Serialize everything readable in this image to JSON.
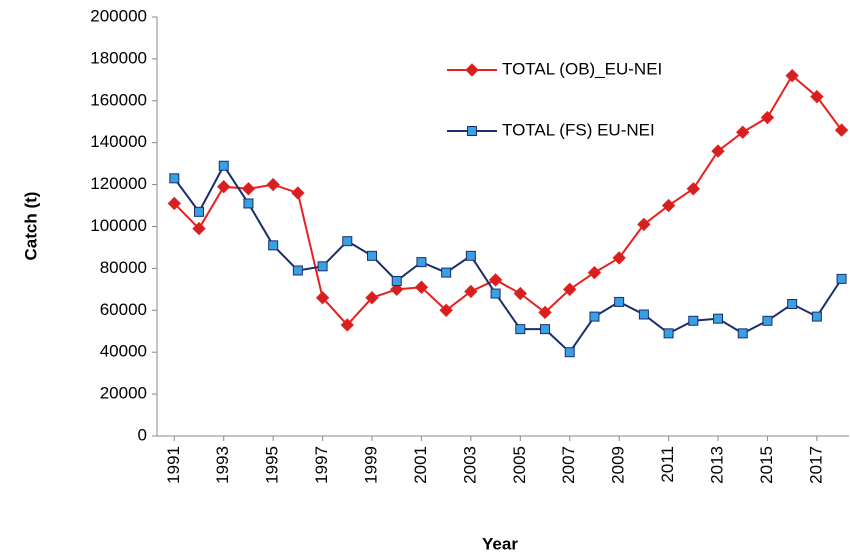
{
  "chart_data": {
    "type": "line",
    "x_label": "Year",
    "y_label": "Catch (t)",
    "x": [
      1991,
      1992,
      1993,
      1994,
      1995,
      1996,
      1997,
      1998,
      1999,
      2000,
      2001,
      2002,
      2003,
      2004,
      2005,
      2006,
      2007,
      2008,
      2009,
      2010,
      2011,
      2012,
      2013,
      2014,
      2015,
      2016,
      2017,
      2018
    ],
    "xlim": [
      1990.3,
      2018.3
    ],
    "xticks": [
      1991,
      1993,
      1995,
      1997,
      1999,
      2001,
      2003,
      2005,
      2007,
      2009,
      2011,
      2013,
      2015,
      2017
    ],
    "ylim": [
      0,
      200000
    ],
    "yticks": [
      0,
      20000,
      40000,
      60000,
      80000,
      100000,
      120000,
      140000,
      160000,
      180000,
      200000
    ],
    "grid": false,
    "legend": "upper right",
    "series": [
      {
        "name": "TOTAL (OB)_EU-NEI",
        "color": "#e8201e",
        "marker": "diamond",
        "marker_color": "#d42020",
        "values": [
          111000,
          99000,
          119000,
          118000,
          120000,
          116000,
          66000,
          53000,
          66000,
          70000,
          71000,
          60000,
          69000,
          74500,
          68000,
          59000,
          70000,
          78000,
          85000,
          101000,
          110000,
          118000,
          136000,
          145000,
          152000,
          172000,
          162000,
          146000
        ]
      },
      {
        "name": "TOTAL (FS) EU-NEI",
        "color": "#1a2e6e",
        "marker": "square",
        "marker_color": "#3aa0e4",
        "values": [
          123000,
          107000,
          129000,
          111000,
          91000,
          79000,
          81000,
          93000,
          86000,
          74000,
          83000,
          78000,
          86000,
          68000,
          51000,
          51000,
          40000,
          57000,
          64000,
          58000,
          49000,
          55000,
          56000,
          49000,
          55000,
          63000,
          57000,
          75000
        ]
      }
    ]
  }
}
